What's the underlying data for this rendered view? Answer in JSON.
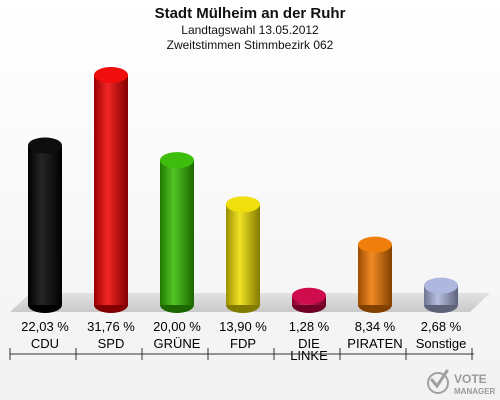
{
  "header": {
    "title": "Stadt Mülheim an der Ruhr",
    "subtitle1": "Landtagswahl 13.05.2012",
    "subtitle2": "Zweitstimmen Stimmbezirk 062"
  },
  "logo": {
    "line1": "VOTE",
    "line2": "MANAGER"
  },
  "chart_data": {
    "type": "bar",
    "title": "Stadt Mülheim an der Ruhr",
    "categories": [
      "CDU",
      "SPD",
      "GRÜNE",
      "FDP",
      "DIE LINKE",
      "PIRATEN",
      "Sonstige"
    ],
    "category_lines": [
      [
        "CDU"
      ],
      [
        "SPD"
      ],
      [
        "GRÜNE"
      ],
      [
        "FDP"
      ],
      [
        "DIE",
        "LINKE"
      ],
      [
        "PIRATEN"
      ],
      [
        "Sonstige"
      ]
    ],
    "values": [
      22.03,
      31.76,
      20.0,
      13.9,
      1.28,
      8.34,
      2.68
    ],
    "value_labels": [
      "22,03 %",
      "31,76 %",
      "20,00 %",
      "13,90 %",
      "1,28 %",
      "8,34 %",
      "2,68 %"
    ],
    "colors": [
      "#000000",
      "#ee0000",
      "#33bb00",
      "#eedd00",
      "#cc0044",
      "#ee7700",
      "#aab4dd"
    ],
    "ylim": [
      0,
      31.76
    ],
    "grid": false,
    "legend": "none"
  }
}
